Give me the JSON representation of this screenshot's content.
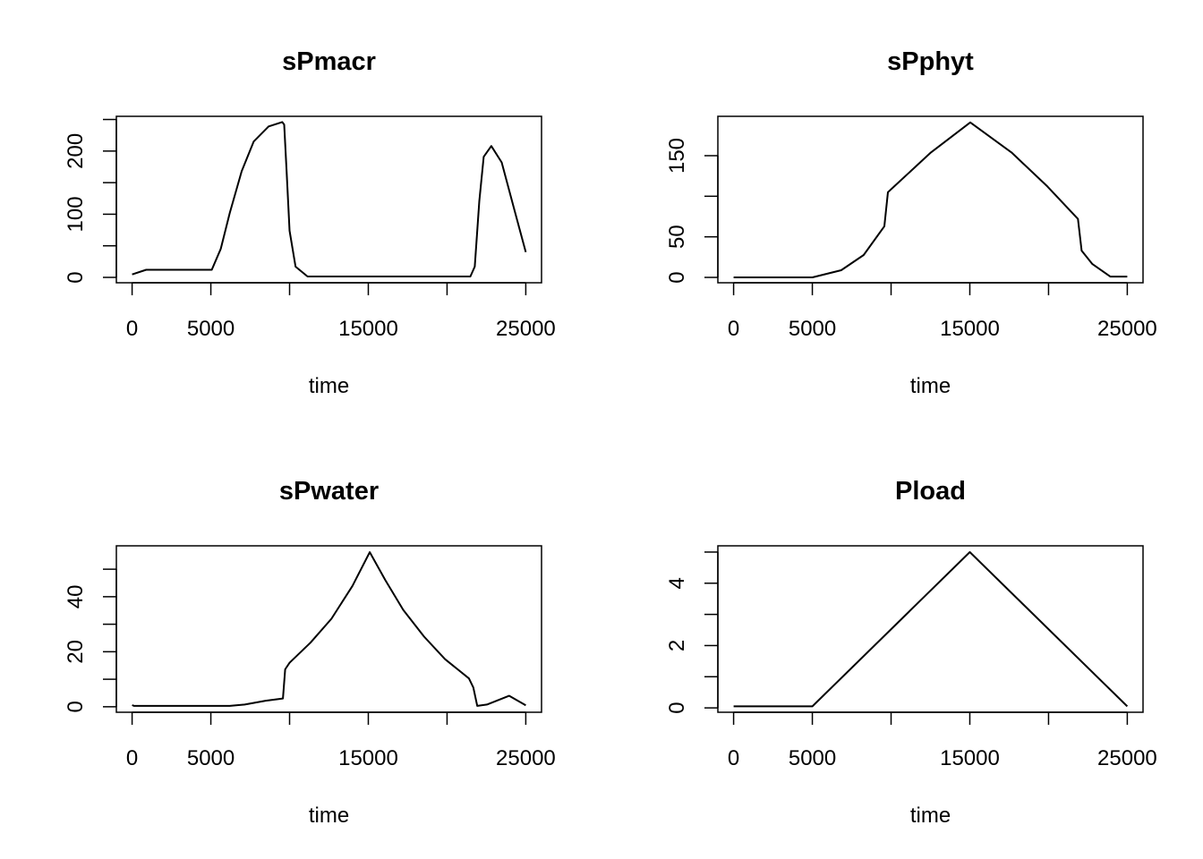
{
  "chart_data": [
    {
      "type": "line",
      "title": "sPmacr",
      "xlabel": "time",
      "ylabel": "",
      "xlim": [
        -1000,
        26000
      ],
      "ylim": [
        -8.5,
        255
      ],
      "xticks": [
        0,
        5000,
        10000,
        15000,
        20000,
        25000
      ],
      "xtick_labels": [
        "0",
        "5000",
        "",
        "15000",
        "",
        "25000"
      ],
      "yticks": [
        0,
        50,
        100,
        150,
        200,
        250
      ],
      "ytick_labels": [
        "0",
        "",
        "100",
        "",
        "200",
        ""
      ],
      "x": [
        0,
        890,
        5060,
        5630,
        6200,
        6960,
        7720,
        8670,
        9530,
        9660,
        9810,
        10000,
        10380,
        11140,
        21480,
        21760,
        22050,
        22330,
        22810,
        23470,
        24230,
        25000
      ],
      "y": [
        4.7,
        12,
        12,
        45,
        102,
        168,
        215,
        239,
        246,
        242,
        168,
        74,
        17,
        1.4,
        1.4,
        17,
        121,
        191,
        208,
        182,
        111,
        40
      ]
    },
    {
      "type": "line",
      "title": "sPphyt",
      "xlabel": "time",
      "ylabel": "",
      "xlim": [
        -1000,
        26000
      ],
      "ylim": [
        -6.6,
        198.5
      ],
      "xticks": [
        0,
        5000,
        10000,
        15000,
        20000,
        25000
      ],
      "xtick_labels": [
        "0",
        "5000",
        "",
        "15000",
        "",
        "25000"
      ],
      "yticks": [
        0,
        50,
        100,
        150
      ],
      "ytick_labels": [
        "0",
        "50",
        "",
        "150"
      ],
      "x": [
        0,
        5000,
        6830,
        8260,
        9570,
        9800,
        10250,
        12530,
        15030,
        17650,
        19930,
        21870,
        22100,
        22780,
        23920,
        25000
      ],
      "y": [
        0,
        0,
        8.8,
        27.6,
        63,
        105,
        113,
        154,
        191,
        154,
        112,
        72,
        33,
        16.5,
        1,
        1
      ]
    },
    {
      "type": "line",
      "title": "sPwater",
      "xlabel": "time",
      "ylabel": "",
      "xlim": [
        -1000,
        26000
      ],
      "ylim": [
        -2,
        58.5
      ],
      "xticks": [
        0,
        5000,
        10000,
        15000,
        20000,
        25000
      ],
      "xtick_labels": [
        "0",
        "5000",
        "",
        "15000",
        "",
        "25000"
      ],
      "yticks": [
        0,
        10,
        20,
        30,
        40,
        50
      ],
      "ytick_labels": [
        "0",
        "",
        "20",
        "",
        "40",
        ""
      ],
      "x": [
        0,
        130,
        6200,
        7150,
        8480,
        9580,
        9720,
        10000,
        11330,
        12660,
        13990,
        15090,
        16080,
        17220,
        18540,
        19870,
        21390,
        21670,
        21920,
        22530,
        23950,
        25000
      ],
      "y": [
        0.6,
        0.3,
        0.3,
        0.8,
        2.2,
        3,
        13.6,
        16,
        23.3,
        32,
        43.9,
        56.2,
        46,
        35.2,
        25.5,
        17.3,
        10.3,
        7,
        0.3,
        0.8,
        4,
        0.5
      ]
    },
    {
      "type": "line",
      "title": "Pload",
      "xlabel": "time",
      "ylabel": "",
      "xlim": [
        -1000,
        26000
      ],
      "ylim": [
        -0.14,
        5.2
      ],
      "xticks": [
        0,
        5000,
        10000,
        15000,
        20000,
        25000
      ],
      "xtick_labels": [
        "0",
        "5000",
        "",
        "15000",
        "",
        "25000"
      ],
      "yticks": [
        0,
        1,
        2,
        3,
        4,
        5
      ],
      "ytick_labels": [
        "0",
        "",
        "2",
        "",
        "4",
        ""
      ],
      "x": [
        0,
        5000,
        15000,
        25000
      ],
      "y": [
        0.05,
        0.05,
        5,
        0.05
      ]
    }
  ]
}
